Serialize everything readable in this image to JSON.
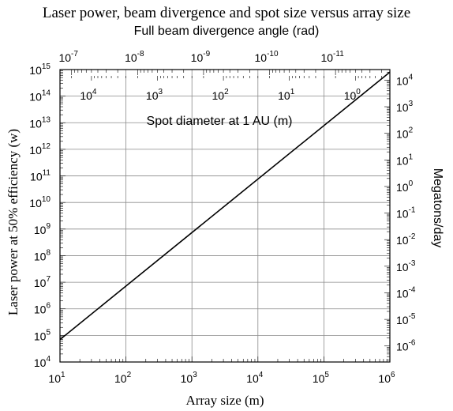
{
  "chart_data": {
    "type": "line",
    "title": "Laser power, beam divergence and spot size versus array size",
    "xlabel": "Array size (m)",
    "ylabel": "Laser power at 50% efficiency (w)",
    "y2label": "Megatons/day",
    "top_axis_label": "Full beam divergence angle (rad)",
    "inner_axis_label": "Spot diameter at 1 AU (m)",
    "xscale": "log",
    "yscale": "log",
    "xlim": [
      10,
      1000000
    ],
    "ylim": [
      10000,
      1000000000000000
    ],
    "y2lim": [
      2.5e-07,
      25000
    ],
    "grid": true,
    "x_ticks": [
      {
        "base": "10",
        "exp": "1"
      },
      {
        "base": "10",
        "exp": "2"
      },
      {
        "base": "10",
        "exp": "3"
      },
      {
        "base": "10",
        "exp": "4"
      },
      {
        "base": "10",
        "exp": "5"
      },
      {
        "base": "10",
        "exp": "6"
      }
    ],
    "y_ticks": [
      {
        "base": "10",
        "exp": "4"
      },
      {
        "base": "10",
        "exp": "5"
      },
      {
        "base": "10",
        "exp": "6"
      },
      {
        "base": "10",
        "exp": "7"
      },
      {
        "base": "10",
        "exp": "8"
      },
      {
        "base": "10",
        "exp": "9"
      },
      {
        "base": "10",
        "exp": "10"
      },
      {
        "base": "10",
        "exp": "11"
      },
      {
        "base": "10",
        "exp": "12"
      },
      {
        "base": "10",
        "exp": "13"
      },
      {
        "base": "10",
        "exp": "14"
      },
      {
        "base": "10",
        "exp": "15"
      }
    ],
    "y2_ticks": [
      {
        "base": "10",
        "exp": "-6",
        "value": 1e-06
      },
      {
        "base": "10",
        "exp": "-5",
        "value": 1e-05
      },
      {
        "base": "10",
        "exp": "-4",
        "value": 0.0001
      },
      {
        "base": "10",
        "exp": "-3",
        "value": 0.001
      },
      {
        "base": "10",
        "exp": "-2",
        "value": 0.01
      },
      {
        "base": "10",
        "exp": "-1",
        "value": 0.1
      },
      {
        "base": "10",
        "exp": "0",
        "value": 1
      },
      {
        "base": "10",
        "exp": "1",
        "value": 10
      },
      {
        "base": "10",
        "exp": "2",
        "value": 100
      },
      {
        "base": "10",
        "exp": "3",
        "value": 1000
      },
      {
        "base": "10",
        "exp": "4",
        "value": 10000
      }
    ],
    "top_ticks": [
      {
        "base": "10",
        "exp": "-7",
        "array_size": 15
      },
      {
        "base": "10",
        "exp": "-8",
        "array_size": 150
      },
      {
        "base": "10",
        "exp": "-9",
        "array_size": 1500
      },
      {
        "base": "10",
        "exp": "-10",
        "array_size": 15000
      },
      {
        "base": "10",
        "exp": "-11",
        "array_size": 150000
      }
    ],
    "inner_ticks": [
      {
        "base": "10",
        "exp": "4",
        "array_size": 30
      },
      {
        "base": "10",
        "exp": "3",
        "array_size": 300
      },
      {
        "base": "10",
        "exp": "2",
        "array_size": 3000
      },
      {
        "base": "10",
        "exp": "1",
        "array_size": 30000
      },
      {
        "base": "10",
        "exp": "0",
        "array_size": 300000
      }
    ],
    "series": [
      {
        "x": [
          10,
          1000000
        ],
        "y": [
          70000,
          800000000000000
        ]
      }
    ]
  }
}
